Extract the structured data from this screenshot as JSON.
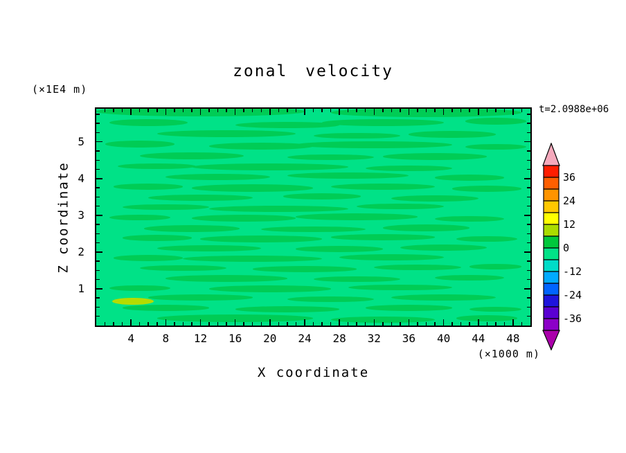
{
  "page": {
    "background": "#ffffff"
  },
  "header": {
    "title": "zonal velocity"
  },
  "annotations": {
    "y_axis_unit": "(×1E4 m)",
    "x_axis_unit": "(×1000 m)",
    "time_label": "t=2.0988e+06"
  },
  "axes": {
    "x": {
      "label": "X coordinate",
      "min": 0,
      "max": 50,
      "major_ticks": [
        4,
        8,
        12,
        16,
        20,
        24,
        28,
        32,
        36,
        40,
        44,
        48
      ],
      "minor_step": 1
    },
    "z": {
      "label": "Z coordinate",
      "min": 0,
      "max": 5.9,
      "major_ticks": [
        1,
        2,
        3,
        4,
        5
      ],
      "minor_step": 0.25
    }
  },
  "colorbar": {
    "top_value": 42,
    "step": 6,
    "label_values": [
      36,
      24,
      12,
      0,
      -12,
      -24,
      -36
    ],
    "cells_top_to_bottom": [
      "#FF1E00",
      "#FF5F00",
      "#FF9400",
      "#FFC800",
      "#FFFF00",
      "#AADC00",
      "#00C83C",
      "#00E287",
      "#00DCC8",
      "#00AAFF",
      "#0064FF",
      "#1E14DC",
      "#5A00D2",
      "#8C00C8"
    ],
    "arrow_top_color": "#F5A9BC",
    "arrow_bottom_color": "#AA00AA",
    "outline_color": "#000000"
  },
  "chart_data": {
    "type": "contour",
    "title": "zonal velocity",
    "xlabel": "X coordinate (×1000 m)",
    "ylabel": "Z coordinate (×1E4 m)",
    "x_range": [
      0,
      50
    ],
    "z_range": [
      0,
      5.9
    ],
    "time": "t=2.0988e+06",
    "contour_interval": 6,
    "colorbar_range": [
      -42,
      42
    ],
    "legend_position": "right",
    "grid": false,
    "field": {
      "description": "Zonal velocity field mostly between -6 and +6 m/s: spring-green background (-6..0) with elongated horizontal green streaks (0..6) across all heights, plus one small yellow-green patch (6..12) near x=4, z=0.7.",
      "background_color": "#00E287",
      "background_value_range": [
        -6,
        0
      ],
      "streak_color": "#00CC55",
      "streak_value_range": [
        0,
        6
      ],
      "streaks": [
        [
          12,
          5.82,
          12,
          0.13
        ],
        [
          38,
          5.8,
          11,
          0.12
        ],
        [
          6,
          5.52,
          4.5,
          0.1
        ],
        [
          22,
          5.46,
          6,
          0.09
        ],
        [
          33,
          5.52,
          7,
          0.1
        ],
        [
          46,
          5.56,
          3.5,
          0.09
        ],
        [
          15,
          5.22,
          8,
          0.1
        ],
        [
          30,
          5.16,
          5,
          0.08
        ],
        [
          41,
          5.2,
          5,
          0.09
        ],
        [
          5,
          4.94,
          4,
          0.09
        ],
        [
          19,
          4.88,
          6,
          0.09
        ],
        [
          32,
          4.92,
          9,
          0.1
        ],
        [
          46,
          4.86,
          3.5,
          0.08
        ],
        [
          11,
          4.62,
          6,
          0.1
        ],
        [
          27,
          4.58,
          5,
          0.08
        ],
        [
          39,
          4.6,
          6,
          0.09
        ],
        [
          7,
          4.34,
          4.5,
          0.08
        ],
        [
          20,
          4.32,
          9,
          0.1
        ],
        [
          36,
          4.28,
          5,
          0.08
        ],
        [
          14,
          4.04,
          6,
          0.09
        ],
        [
          29,
          4.08,
          7,
          0.09
        ],
        [
          43,
          4.02,
          4,
          0.08
        ],
        [
          6,
          3.78,
          4,
          0.08
        ],
        [
          18,
          3.74,
          7,
          0.1
        ],
        [
          33,
          3.78,
          6,
          0.09
        ],
        [
          45,
          3.72,
          4,
          0.08
        ],
        [
          12,
          3.48,
          6,
          0.09
        ],
        [
          26,
          3.52,
          4.5,
          0.08
        ],
        [
          39,
          3.46,
          5,
          0.09
        ],
        [
          8,
          3.22,
          5,
          0.08
        ],
        [
          21,
          3.18,
          8,
          0.09
        ],
        [
          35,
          3.24,
          5,
          0.08
        ],
        [
          5,
          2.94,
          3.5,
          0.08
        ],
        [
          17,
          2.92,
          6,
          0.09
        ],
        [
          30,
          2.96,
          7,
          0.09
        ],
        [
          43,
          2.9,
          4,
          0.08
        ],
        [
          11,
          2.64,
          5.5,
          0.09
        ],
        [
          25,
          2.62,
          6,
          0.08
        ],
        [
          38,
          2.66,
          5,
          0.09
        ],
        [
          7,
          2.38,
          4,
          0.08
        ],
        [
          19,
          2.36,
          7,
          0.09
        ],
        [
          33,
          2.4,
          6,
          0.08
        ],
        [
          45,
          2.36,
          3.5,
          0.08
        ],
        [
          13,
          2.1,
          6,
          0.09
        ],
        [
          28,
          2.08,
          5,
          0.08
        ],
        [
          40,
          2.12,
          5,
          0.09
        ],
        [
          6,
          1.84,
          4,
          0.08
        ],
        [
          18,
          1.82,
          8,
          0.09
        ],
        [
          34,
          1.86,
          6,
          0.09
        ],
        [
          10,
          1.56,
          5,
          0.08
        ],
        [
          24,
          1.54,
          6,
          0.08
        ],
        [
          37,
          1.58,
          5,
          0.08
        ],
        [
          46,
          1.6,
          3,
          0.07
        ],
        [
          15,
          1.28,
          7,
          0.09
        ],
        [
          30,
          1.26,
          5,
          0.08
        ],
        [
          43,
          1.3,
          4,
          0.08
        ],
        [
          5,
          1.02,
          3.5,
          0.08
        ],
        [
          20,
          1.0,
          7,
          0.09
        ],
        [
          35,
          1.04,
          6,
          0.08
        ],
        [
          12,
          0.76,
          6,
          0.08
        ],
        [
          27,
          0.72,
          5,
          0.08
        ],
        [
          40,
          0.76,
          6,
          0.09
        ],
        [
          8,
          0.48,
          5,
          0.08
        ],
        [
          22,
          0.44,
          6,
          0.08
        ],
        [
          36,
          0.48,
          5,
          0.08
        ],
        [
          46,
          0.44,
          3,
          0.07
        ],
        [
          16,
          0.2,
          9,
          0.1
        ],
        [
          33,
          0.16,
          6,
          0.09
        ],
        [
          45,
          0.2,
          3.5,
          0.08
        ]
      ],
      "patches": [
        {
          "x": 4.2,
          "z": 0.66,
          "hw": 2.4,
          "hh": 0.1,
          "color": "#B4DC00",
          "value_range": [
            6,
            12
          ]
        }
      ]
    }
  }
}
